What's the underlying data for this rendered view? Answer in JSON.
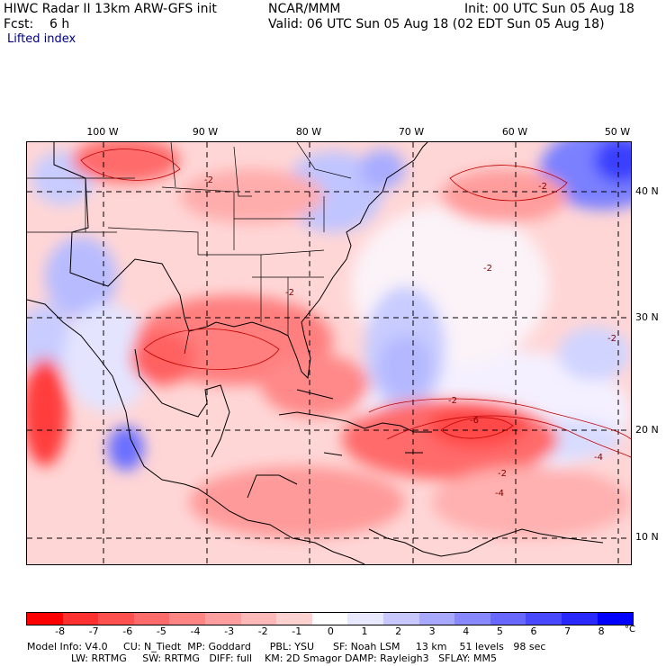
{
  "header": {
    "title_left": "HIWC Radar II 13km ARW-GFS init",
    "org": "NCAR/MMM",
    "init": "Init: 00 UTC Sun 05 Aug 18",
    "fcst": "Fcst:    6 h",
    "valid": "Valid: 06 UTC Sun 05 Aug 18 (02 EDT Sun 05 Aug 18)",
    "field": "Lifted index"
  },
  "map": {
    "lon_labels": [
      "100 W",
      "90 W",
      "80 W",
      "70 W",
      "60 W",
      "50 W"
    ],
    "lat_labels": [
      "40 N",
      "30 N",
      "20 N",
      "10 N"
    ],
    "contour_labels": [
      "-2",
      "-2",
      "-2",
      "-2",
      "-2",
      "-2",
      "-6",
      "-4",
      "-4",
      "-2"
    ]
  },
  "colorbar": {
    "colors": [
      "#ff0000",
      "#ff3030",
      "#ff5050",
      "#ff6a6a",
      "#ff8484",
      "#ff9e9e",
      "#ffb8b8",
      "#ffd2d2",
      "#ffffff",
      "#e8e8ff",
      "#c8c8ff",
      "#a8a8ff",
      "#8888ff",
      "#6868ff",
      "#4848ff",
      "#2828ff",
      "#0000ff"
    ],
    "ticks": [
      "-8",
      "-7",
      "-6",
      "-5",
      "-4",
      "-3",
      "-2",
      "-1",
      "0",
      "1",
      "2",
      "3",
      "4",
      "5",
      "6",
      "7",
      "8"
    ],
    "unit": "°C"
  },
  "footer": {
    "line1": "Model Info: V4.0     CU: N_Tiedt  MP: Goddard      PBL: YSU      SF: Noah LSM     13 km    51 levels   98 sec",
    "line2": "              LW: RRTMG     SW: RRTMG   DIFF: full    KM: 2D Smagor DAMP: Rayleigh3   SFLAY: MM5"
  }
}
